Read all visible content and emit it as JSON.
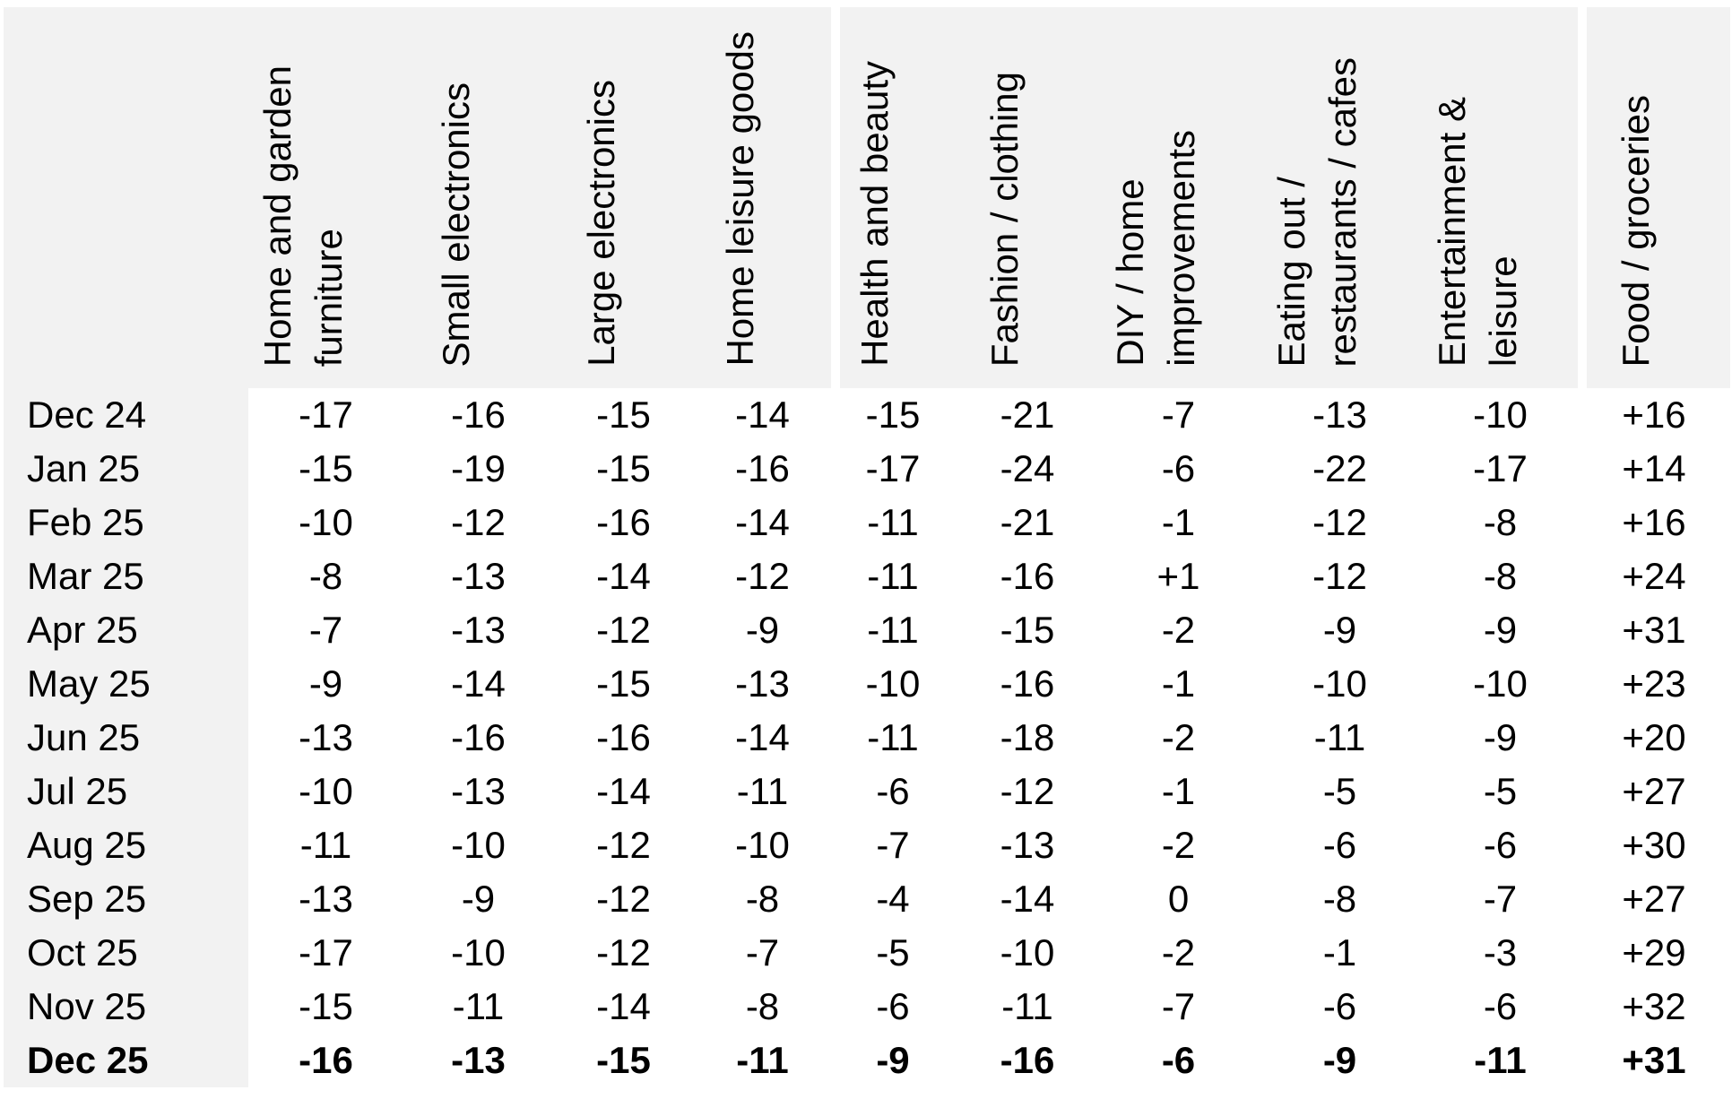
{
  "table": {
    "columns": [
      "Home and garden\nfurniture",
      "Small electronics",
      "Large electronics",
      "Home leisure goods",
      "Health and beauty",
      "Fashion / clothing",
      "DIY / home\nimprovements",
      "Eating out /\nrestaurants / cafes",
      "Entertainment &\nleisure",
      "Food / groceries"
    ],
    "gap_before_columns": [
      4,
      9
    ],
    "rows": [
      {
        "label": "Dec 24",
        "bold": false,
        "values": [
          "-17",
          "-16",
          "-15",
          "-14",
          "-15",
          "-21",
          "-7",
          "-13",
          "-10",
          "+16"
        ]
      },
      {
        "label": "Jan 25",
        "bold": false,
        "values": [
          "-15",
          "-19",
          "-15",
          "-16",
          "-17",
          "-24",
          "-6",
          "-22",
          "-17",
          "+14"
        ]
      },
      {
        "label": "Feb 25",
        "bold": false,
        "values": [
          "-10",
          "-12",
          "-16",
          "-14",
          "-11",
          "-21",
          "-1",
          "-12",
          "-8",
          "+16"
        ]
      },
      {
        "label": "Mar 25",
        "bold": false,
        "values": [
          "-8",
          "-13",
          "-14",
          "-12",
          "-11",
          "-16",
          "+1",
          "-12",
          "-8",
          "+24"
        ]
      },
      {
        "label": "Apr 25",
        "bold": false,
        "values": [
          "-7",
          "-13",
          "-12",
          "-9",
          "-11",
          "-15",
          "-2",
          "-9",
          "-9",
          "+31"
        ]
      },
      {
        "label": "May 25",
        "bold": false,
        "values": [
          "-9",
          "-14",
          "-15",
          "-13",
          "-10",
          "-16",
          "-1",
          "-10",
          "-10",
          "+23"
        ]
      },
      {
        "label": "Jun 25",
        "bold": false,
        "values": [
          "-13",
          "-16",
          "-16",
          "-14",
          "-11",
          "-18",
          "-2",
          "-11",
          "-9",
          "+20"
        ]
      },
      {
        "label": "Jul 25",
        "bold": false,
        "values": [
          "-10",
          "-13",
          "-14",
          "-11",
          "-6",
          "-12",
          "-1",
          "-5",
          "-5",
          "+27"
        ]
      },
      {
        "label": "Aug 25",
        "bold": false,
        "values": [
          "-11",
          "-10",
          "-12",
          "-10",
          "-7",
          "-13",
          "-2",
          "-6",
          "-6",
          "+30"
        ]
      },
      {
        "label": "Sep 25",
        "bold": false,
        "values": [
          "-13",
          "-9",
          "-12",
          "-8",
          "-4",
          "-14",
          "0",
          "-8",
          "-7",
          "+27"
        ]
      },
      {
        "label": "Oct 25",
        "bold": false,
        "values": [
          "-17",
          "-10",
          "-12",
          "-7",
          "-5",
          "-10",
          "-2",
          "-1",
          "-3",
          "+29"
        ]
      },
      {
        "label": "Nov 25",
        "bold": false,
        "values": [
          "-15",
          "-11",
          "-14",
          "-8",
          "-6",
          "-11",
          "-7",
          "-6",
          "-6",
          "+32"
        ]
      },
      {
        "label": "Dec 25",
        "bold": true,
        "values": [
          "-16",
          "-13",
          "-15",
          "-11",
          "-9",
          "-16",
          "-6",
          "-9",
          "-11",
          "+31"
        ]
      }
    ]
  },
  "colors": {
    "header_bg": "#f2f2f2",
    "label_column_bg": "#f2f2f2",
    "body_bg": "#ffffff",
    "text": "#000000"
  },
  "chart_data": {
    "type": "table",
    "columns": [
      "Home and garden furniture",
      "Small electronics",
      "Large electronics",
      "Home leisure goods",
      "Health and beauty",
      "Fashion / clothing",
      "DIY / home improvements",
      "Eating out / restaurants / cafes",
      "Entertainment & leisure",
      "Food / groceries"
    ],
    "row_labels": [
      "Dec 24",
      "Jan 25",
      "Feb 25",
      "Mar 25",
      "Apr 25",
      "May 25",
      "Jun 25",
      "Jul 25",
      "Aug 25",
      "Sep 25",
      "Oct 25",
      "Nov 25",
      "Dec 25"
    ],
    "values": [
      [
        -17,
        -16,
        -15,
        -14,
        -15,
        -21,
        -7,
        -13,
        -10,
        16
      ],
      [
        -15,
        -19,
        -15,
        -16,
        -17,
        -24,
        -6,
        -22,
        -17,
        14
      ],
      [
        -10,
        -12,
        -16,
        -14,
        -11,
        -21,
        -1,
        -12,
        -8,
        16
      ],
      [
        -8,
        -13,
        -14,
        -12,
        -11,
        -16,
        1,
        -12,
        -8,
        24
      ],
      [
        -7,
        -13,
        -12,
        -9,
        -11,
        -15,
        -2,
        -9,
        -9,
        31
      ],
      [
        -9,
        -14,
        -15,
        -13,
        -10,
        -16,
        -1,
        -10,
        -10,
        23
      ],
      [
        -13,
        -16,
        -16,
        -14,
        -11,
        -18,
        -2,
        -11,
        -9,
        20
      ],
      [
        -10,
        -13,
        -14,
        -11,
        -6,
        -12,
        -1,
        -5,
        -5,
        27
      ],
      [
        -11,
        -10,
        -12,
        -10,
        -7,
        -13,
        -2,
        -6,
        -6,
        30
      ],
      [
        -13,
        -9,
        -12,
        -8,
        -4,
        -14,
        0,
        -8,
        -7,
        27
      ],
      [
        -17,
        -10,
        -12,
        -7,
        -5,
        -10,
        -2,
        -1,
        -3,
        29
      ],
      [
        -15,
        -11,
        -14,
        -8,
        -6,
        -11,
        -7,
        -6,
        -6,
        32
      ],
      [
        -16,
        -13,
        -15,
        -11,
        -9,
        -16,
        -6,
        -9,
        -11,
        31
      ]
    ],
    "emphasized_row": "Dec 25"
  }
}
